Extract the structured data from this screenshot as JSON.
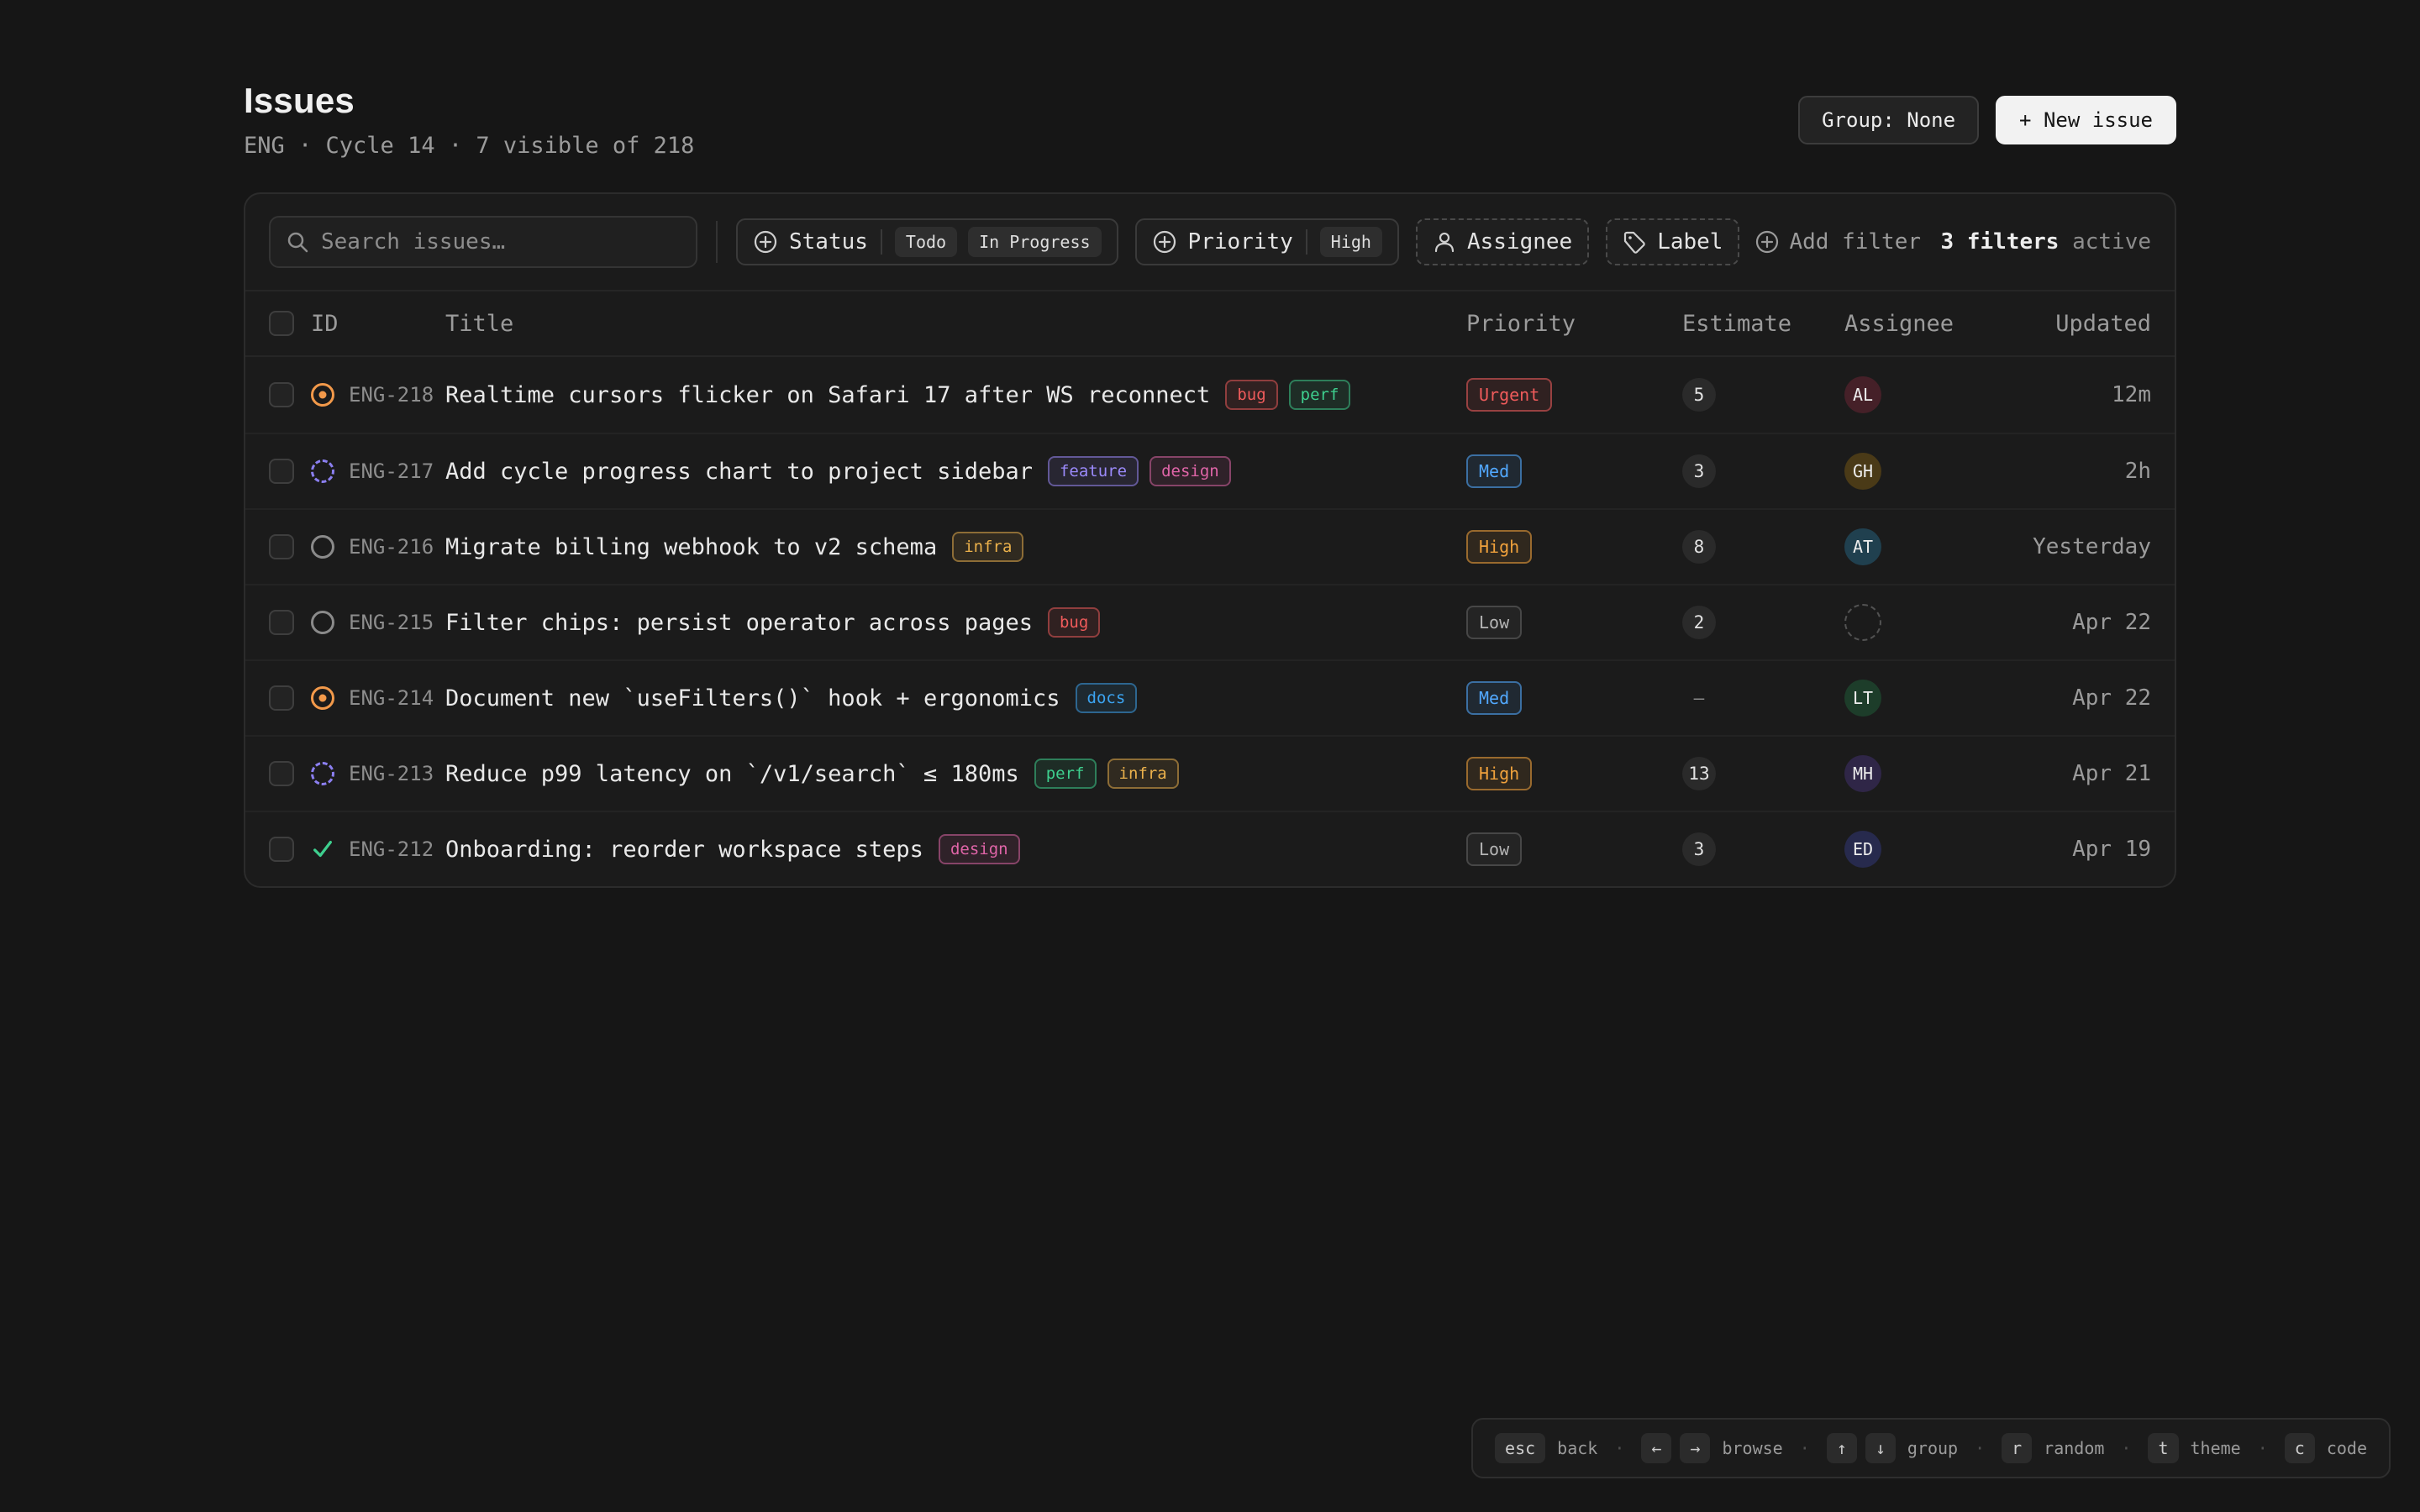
{
  "page": {
    "title": "Issues",
    "subtitle": "ENG · Cycle 14 · 7 visible of 218"
  },
  "header": {
    "group_button": "Group: None",
    "new_issue_button": "+ New issue"
  },
  "toolbar": {
    "search_placeholder": "Search issues…",
    "filters": [
      {
        "label": "Status",
        "icon": "plus-circle",
        "style": "solid",
        "values": [
          "Todo",
          "In Progress"
        ]
      },
      {
        "label": "Priority",
        "icon": "plus-circle",
        "style": "solid",
        "values": [
          "High"
        ]
      },
      {
        "label": "Assignee",
        "icon": "user",
        "style": "dashed",
        "values": []
      },
      {
        "label": "Label",
        "icon": "tag",
        "style": "dashed",
        "values": []
      }
    ],
    "add_filter_label": "Add filter",
    "active_count": "3 filters",
    "active_suffix": " active"
  },
  "table": {
    "columns": [
      "ID",
      "Title",
      "Priority",
      "Estimate",
      "Assignee",
      "Updated"
    ],
    "rows": [
      {
        "id": "ENG-218",
        "status": "in-progress",
        "title": "Realtime cursors flicker on Safari 17 after WS reconnect",
        "labels": [
          "bug",
          "perf"
        ],
        "priority": "Urgent",
        "estimate": "5",
        "assignee": "AL",
        "updated": "12m"
      },
      {
        "id": "ENG-217",
        "status": "backlog",
        "title": "Add cycle progress chart to project sidebar",
        "labels": [
          "feature",
          "design"
        ],
        "priority": "Med",
        "estimate": "3",
        "assignee": "GH",
        "updated": "2h"
      },
      {
        "id": "ENG-216",
        "status": "todo",
        "title": "Migrate billing webhook to v2 schema",
        "labels": [
          "infra"
        ],
        "priority": "High",
        "estimate": "8",
        "assignee": "AT",
        "updated": "Yesterday"
      },
      {
        "id": "ENG-215",
        "status": "todo",
        "title": "Filter chips: persist operator across pages",
        "labels": [
          "bug"
        ],
        "priority": "Low",
        "estimate": "2",
        "assignee": null,
        "updated": "Apr 22"
      },
      {
        "id": "ENG-214",
        "status": "in-progress",
        "title": "Document new `useFilters()` hook + ergonomics",
        "labels": [
          "docs"
        ],
        "priority": "Med",
        "estimate": null,
        "assignee": "LT",
        "updated": "Apr 22"
      },
      {
        "id": "ENG-213",
        "status": "backlog",
        "title": "Reduce p99 latency on `/v1/search` ≤ 180ms",
        "labels": [
          "perf",
          "infra"
        ],
        "priority": "High",
        "estimate": "13",
        "assignee": "MH",
        "updated": "Apr 21"
      },
      {
        "id": "ENG-212",
        "status": "done",
        "title": "Onboarding: reorder workspace steps",
        "labels": [
          "design"
        ],
        "priority": "Low",
        "estimate": "3",
        "assignee": "ED",
        "updated": "Apr 19"
      }
    ]
  },
  "shortcuts": [
    {
      "keys": [
        "esc"
      ],
      "label": "back"
    },
    {
      "keys": [
        "←",
        "→"
      ],
      "label": "browse"
    },
    {
      "keys": [
        "↑",
        "↓"
      ],
      "label": "group"
    },
    {
      "keys": [
        "r"
      ],
      "label": "random"
    },
    {
      "keys": [
        "t"
      ],
      "label": "theme"
    },
    {
      "keys": [
        "c"
      ],
      "label": "code"
    }
  ],
  "colors": {
    "labels": {
      "bug": "#ef5b5b",
      "perf": "#3ecf8e",
      "feature": "#9b8afb",
      "design": "#e065a8",
      "infra": "#eab04b",
      "docs": "#3ba3f0"
    },
    "priorities": {
      "Urgent": "#ef5b5b",
      "High": "#f0a13c",
      "Med": "#52a9ff",
      "Low": "#b5b5b5"
    },
    "status": {
      "in-progress": "#f2994a",
      "backlog": "#8b7ff0",
      "todo": "#8a8a8a",
      "done": "#3ecf8e"
    },
    "avatars": {
      "AL": "#452028",
      "GH": "#4a3a17",
      "AT": "#20404f",
      "LT": "#1d3d2a",
      "MH": "#2f2647",
      "ED": "#272a4d"
    }
  }
}
